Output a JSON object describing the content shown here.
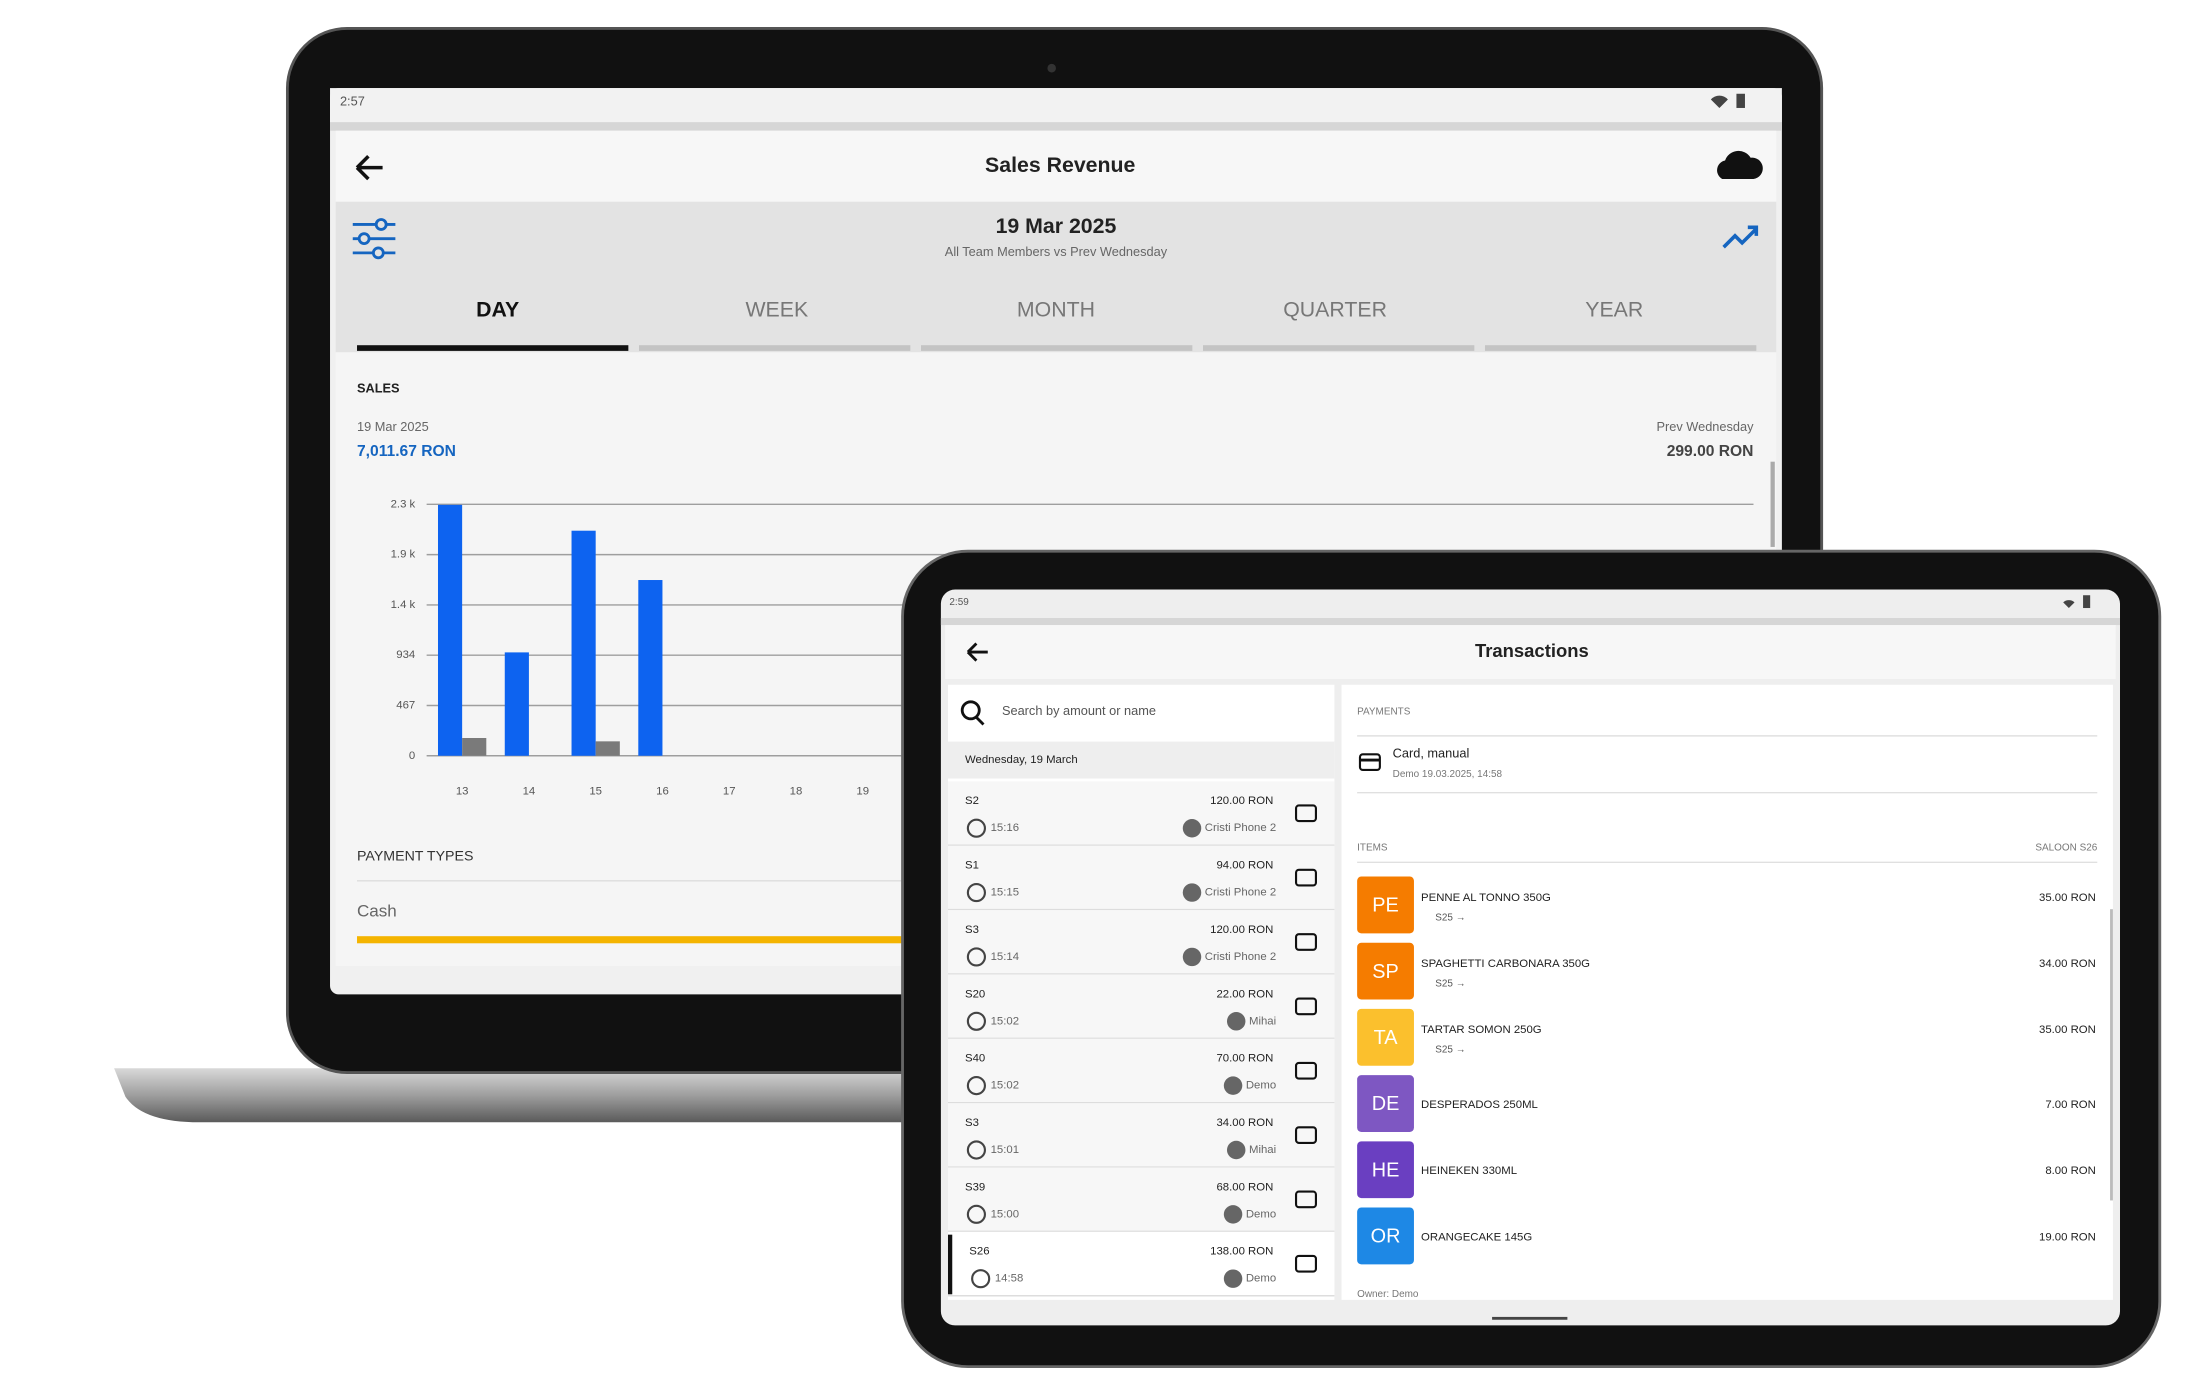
{
  "laptop": {
    "status_time": "2:57",
    "title": "Sales Revenue",
    "date": "19 Mar 2025",
    "subtitle": "All Team Members vs Prev Wednesday",
    "tabs": [
      "DAY",
      "WEEK",
      "MONTH",
      "QUARTER",
      "YEAR"
    ],
    "sales_label": "SALES",
    "current_date": "19 Mar 2025",
    "current_total": "7,011.67 RON",
    "prev_label": "Prev Wednesday",
    "prev_total": "299.00 RON",
    "payment_types_label": "PAYMENT TYPES",
    "payment_type": "Cash"
  },
  "chart_data": {
    "type": "bar",
    "categories": [
      "13",
      "14",
      "15",
      "16",
      "17",
      "18",
      "19"
    ],
    "series": [
      {
        "color": "#0d63f0",
        "values": [
          2330,
          960,
          2090,
          1632,
          0,
          0,
          0
        ]
      },
      {
        "color": "#7a7a7a",
        "values": [
          165,
          0,
          134,
          0,
          0,
          0,
          0
        ]
      }
    ],
    "ylim": [
      0,
      2335
    ],
    "yticks": [
      0,
      467,
      934,
      {
        "value": 1401,
        "label": "1.4 k"
      },
      {
        "value": 1868,
        "label": "1.9 k"
      },
      {
        "value": 2335,
        "label": "2.3 k"
      }
    ],
    "grid": true
  },
  "tablet": {
    "status_time": "2:59",
    "title": "Transactions",
    "search_placeholder": "Search by amount or name",
    "date_header": "Wednesday, 19 March",
    "transactions": [
      {
        "id": "S2",
        "amount": "120.00 RON",
        "time": "15:16",
        "device": "Cristi Phone 2"
      },
      {
        "id": "S1",
        "amount": "94.00 RON",
        "time": "15:15",
        "device": "Cristi Phone 2"
      },
      {
        "id": "S3",
        "amount": "120.00 RON",
        "time": "15:14",
        "device": "Cristi Phone 2"
      },
      {
        "id": "S20",
        "amount": "22.00 RON",
        "time": "15:02",
        "device": "Mihai"
      },
      {
        "id": "S40",
        "amount": "70.00 RON",
        "time": "15:02",
        "device": "Demo"
      },
      {
        "id": "S3",
        "amount": "34.00 RON",
        "time": "15:01",
        "device": "Mihai"
      },
      {
        "id": "S39",
        "amount": "68.00 RON",
        "time": "15:00",
        "device": "Demo"
      },
      {
        "id": "S26",
        "amount": "138.00 RON",
        "time": "14:58",
        "device": "Demo"
      }
    ],
    "payments_label": "PAYMENTS",
    "payment_method": "Card, manual",
    "payment_detail": "Demo 19.03.2025, 14:58",
    "items_label": "ITEMS",
    "items_location": "SALOON  S26",
    "items": [
      {
        "initials": "PE",
        "name": "PENNE AL TONNO 350G",
        "seat": "S25 →",
        "price": "35.00 RON",
        "color": "#f57c00"
      },
      {
        "initials": "SP",
        "name": "SPAGHETTI CARBONARA 350G",
        "seat": "S25 →",
        "price": "34.00 RON",
        "color": "#f57c00"
      },
      {
        "initials": "TA",
        "name": "TARTAR SOMON 250G",
        "seat": "S25 →",
        "price": "35.00 RON",
        "color": "#fbc02d"
      },
      {
        "initials": "DE",
        "name": "DESPERADOS 250ML",
        "price": "7.00 RON",
        "color": "#7e57c2"
      },
      {
        "initials": "HE",
        "name": "HEINEKEN 330ML",
        "price": "8.00 RON",
        "color": "#6a3fc1"
      },
      {
        "initials": "OR",
        "name": "ORANGECAKE 145G",
        "price": "19.00 RON",
        "color": "#1e88e5"
      }
    ],
    "owner": "Owner: Demo"
  }
}
